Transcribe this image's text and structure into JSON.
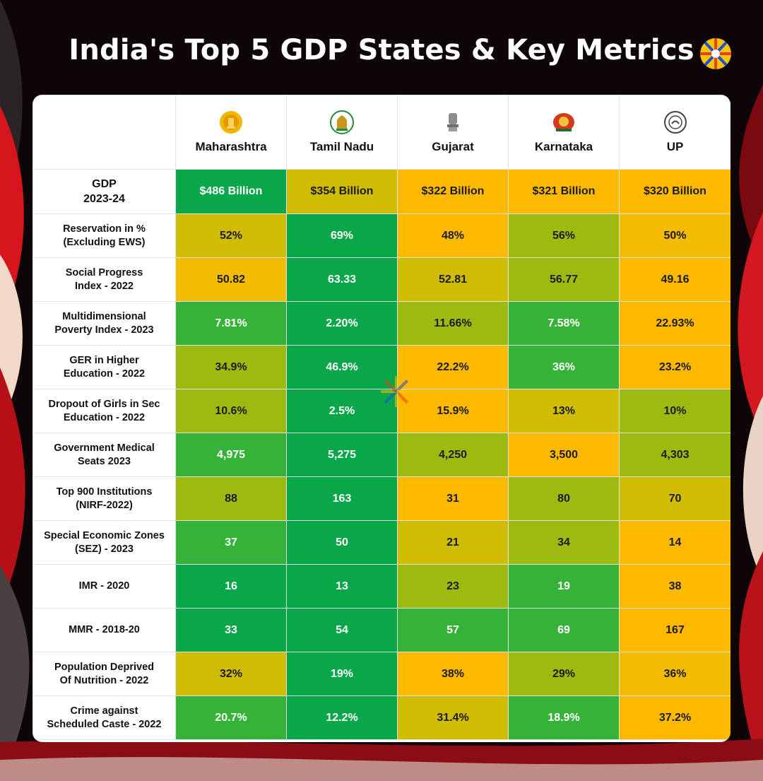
{
  "title": "India's Top 5 GDP States & Key Metrics",
  "colors": {
    "dark_green": "#0aa64a",
    "green": "#35b338",
    "yellow_green": "#9cba10",
    "olive": "#d0bc02",
    "amber": "#f3bc03",
    "orange": "#fdb900"
  },
  "states": [
    {
      "name": "Maharashtra",
      "emblem": "maharashtra-seal-icon"
    },
    {
      "name": "Tamil Nadu",
      "emblem": "tamil-nadu-emblem-icon"
    },
    {
      "name": "Gujarat",
      "emblem": "lion-capital-emblem-icon"
    },
    {
      "name": "Karnataka",
      "emblem": "karnataka-emblem-icon"
    },
    {
      "name": "UP",
      "emblem": "up-seal-icon"
    }
  ],
  "rows": [
    {
      "label": "GDP\n2023-24",
      "values": [
        "$486 Billion",
        "$354 Billion",
        "$322 Billion",
        "$321 Billion",
        "$320 Billion"
      ],
      "colors": [
        "dark_green",
        "olive",
        "orange",
        "orange",
        "orange"
      ]
    },
    {
      "label": "Reservation in %\n(Excluding EWS)",
      "values": [
        "52%",
        "69%",
        "48%",
        "56%",
        "50%"
      ],
      "colors": [
        "olive",
        "dark_green",
        "orange",
        "yellow_green",
        "amber"
      ]
    },
    {
      "label": "Social Progress\nIndex - 2022",
      "values": [
        "50.82",
        "63.33",
        "52.81",
        "56.77",
        "49.16"
      ],
      "colors": [
        "amber",
        "dark_green",
        "olive",
        "yellow_green",
        "orange"
      ]
    },
    {
      "label": "Multidimensional\nPoverty Index - 2023",
      "values": [
        "7.81%",
        "2.20%",
        "11.66%",
        "7.58%",
        "22.93%"
      ],
      "colors": [
        "green",
        "dark_green",
        "yellow_green",
        "green",
        "orange"
      ]
    },
    {
      "label": "GER in Higher\nEducation - 2022",
      "values": [
        "34.9%",
        "46.9%",
        "22.2%",
        "36%",
        "23.2%"
      ],
      "colors": [
        "yellow_green",
        "dark_green",
        "orange",
        "green",
        "orange"
      ]
    },
    {
      "label": "Dropout of Girls in Sec\nEducation - 2022",
      "values": [
        "10.6%",
        "2.5%",
        "15.9%",
        "13%",
        "10%"
      ],
      "colors": [
        "yellow_green",
        "dark_green",
        "orange",
        "olive",
        "yellow_green"
      ]
    },
    {
      "label": "Government Medical\nSeats 2023",
      "values": [
        "4,975",
        "5,275",
        "4,250",
        "3,500",
        "4,303"
      ],
      "colors": [
        "green",
        "dark_green",
        "yellow_green",
        "orange",
        "yellow_green"
      ]
    },
    {
      "label": "Top 900 Institutions\n(NIRF-2022)",
      "values": [
        "88",
        "163",
        "31",
        "80",
        "70"
      ],
      "colors": [
        "yellow_green",
        "dark_green",
        "orange",
        "yellow_green",
        "olive"
      ]
    },
    {
      "label": "Special Economic Zones\n(SEZ) - 2023",
      "values": [
        "37",
        "50",
        "21",
        "34",
        "14"
      ],
      "colors": [
        "green",
        "dark_green",
        "olive",
        "yellow_green",
        "orange"
      ]
    },
    {
      "label": "IMR - 2020",
      "values": [
        "16",
        "13",
        "23",
        "19",
        "38"
      ],
      "colors": [
        "dark_green",
        "dark_green",
        "yellow_green",
        "green",
        "orange"
      ]
    },
    {
      "label": "MMR - 2018-20",
      "values": [
        "33",
        "54",
        "57",
        "69",
        "167"
      ],
      "colors": [
        "dark_green",
        "dark_green",
        "green",
        "green",
        "orange"
      ]
    },
    {
      "label": "Population Deprived\nOf Nutrition - 2022",
      "values": [
        "32%",
        "19%",
        "38%",
        "29%",
        "36%"
      ],
      "colors": [
        "olive",
        "dark_green",
        "orange",
        "yellow_green",
        "amber"
      ]
    },
    {
      "label": "Crime against\nScheduled Caste - 2022",
      "values": [
        "20.7%",
        "12.2%",
        "31.4%",
        "18.9%",
        "37.2%"
      ],
      "colors": [
        "green",
        "dark_green",
        "olive",
        "green",
        "orange"
      ]
    }
  ]
}
